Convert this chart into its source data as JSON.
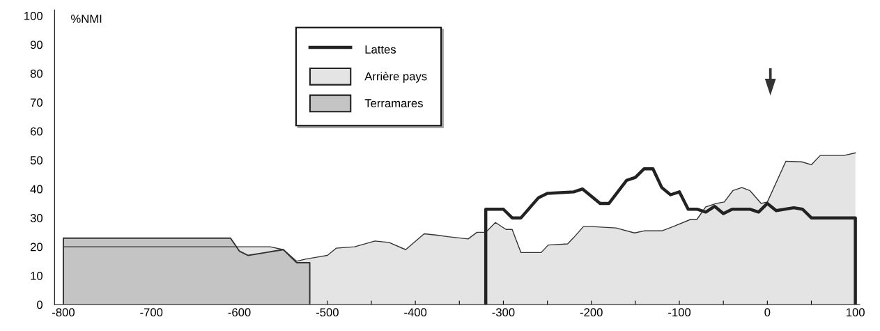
{
  "chart_data": {
    "type": "area",
    "ylabel": "%NMI",
    "xlim": [
      -810,
      105
    ],
    "ylim": [
      0,
      102
    ],
    "xticks": [
      -800,
      {
        "value": -750,
        "label": null
      },
      -700,
      {
        "value": -650,
        "label": null
      },
      -600,
      {
        "value": -550,
        "label": null
      },
      -500,
      {
        "value": -450,
        "label": null
      },
      -400,
      {
        "value": -350,
        "label": null
      },
      -300,
      {
        "value": -250,
        "label": null
      },
      -200,
      {
        "value": -150,
        "label": null
      },
      -100,
      {
        "value": -50,
        "label": null
      },
      0,
      {
        "value": 50,
        "label": null
      },
      100
    ],
    "yticks": [
      0,
      10,
      20,
      30,
      40,
      50,
      60,
      70,
      80,
      90,
      100
    ],
    "grid": false,
    "legend": "top",
    "series": [
      {
        "name": "Lattes",
        "type": "line",
        "color": "#222222",
        "x": [
          -320,
          -320,
          -300,
          -290,
          -280,
          -260,
          -250,
          -220,
          -210,
          -190,
          -180,
          -160,
          -150,
          -140,
          -130,
          -120,
          -110,
          -100,
          -90,
          -80,
          -70,
          -60,
          -50,
          -40,
          -20,
          -10,
          0,
          10,
          30,
          40,
          50,
          100,
          100
        ],
        "values": [
          0,
          33,
          33,
          30,
          30,
          37,
          38.5,
          39,
          40,
          35,
          35,
          43,
          44,
          47,
          47,
          40.5,
          38,
          39,
          33,
          33,
          32,
          34,
          31.5,
          33,
          33,
          32,
          35,
          32.5,
          33.5,
          33,
          30,
          30,
          0
        ]
      },
      {
        "name": "Arrière pays",
        "color": "#e4e4e4",
        "x": [
          -800,
          -565,
          -550,
          -535,
          -525,
          -510,
          -500,
          -490,
          -469,
          -446,
          -430,
          -411,
          -390,
          -375,
          -363,
          -340,
          -330,
          -320,
          -309,
          -297,
          -290,
          -280,
          -257,
          -249,
          -227,
          -220,
          -209,
          -200,
          -172,
          -151,
          -140,
          -120,
          -107,
          -87,
          -80,
          -70,
          -58,
          -49,
          -39,
          -29,
          -20,
          -7,
          0,
          21,
          39,
          50,
          60,
          87,
          100
        ],
        "values": [
          20,
          20,
          19,
          15,
          15.7,
          16.5,
          17,
          19.5,
          20,
          22,
          21.5,
          19,
          24.5,
          24,
          23.5,
          22.7,
          25,
          25,
          28.4,
          26,
          26,
          18,
          18,
          20.6,
          21,
          23.2,
          27,
          27,
          26.5,
          24.8,
          25.5,
          25.5,
          27,
          29.5,
          29.5,
          33.8,
          35,
          35.5,
          39.5,
          40.5,
          39.5,
          35,
          35.5,
          49.6,
          49.4,
          48.4,
          51.6,
          51.6,
          52.5
        ]
      },
      {
        "name": "Terramares",
        "color": "#c4c4c4",
        "x": [
          -800,
          -800,
          -610,
          -600,
          -590,
          -570,
          -560,
          -550,
          -535,
          -520,
          -520
        ],
        "values": [
          0,
          23,
          23,
          18.5,
          17,
          18,
          18.5,
          19,
          14.5,
          14.5,
          0
        ]
      }
    ]
  }
}
